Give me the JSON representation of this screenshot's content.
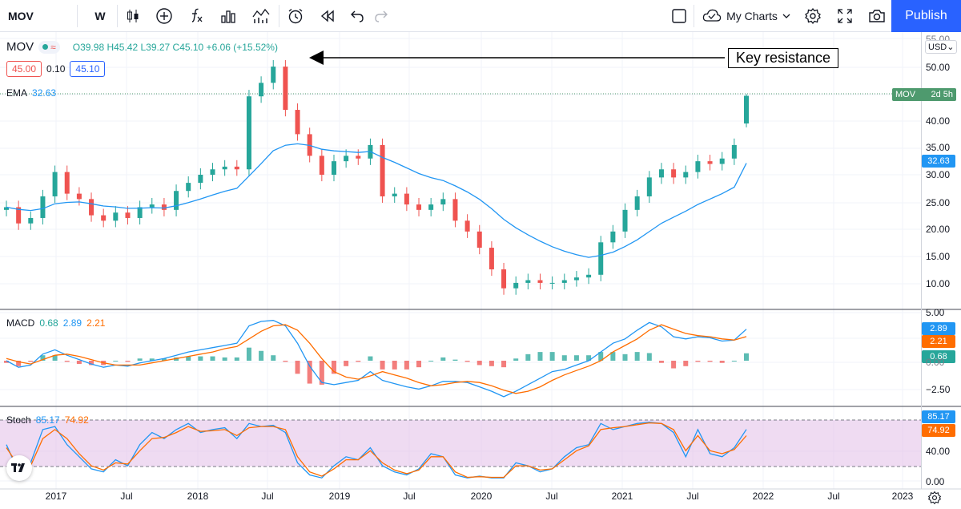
{
  "toolbar": {
    "symbol": "MOV",
    "interval": "W",
    "my_charts_label": "My Charts",
    "publish_label": "Publish"
  },
  "legend": {
    "symbol": "MOV",
    "ohlc": "O39.98  H45.42  L39.27  C45.10  +6.06 (+15.52%)",
    "bid": "45.00",
    "spread": "0.10",
    "ask": "45.10",
    "ema_label": "EMA",
    "ema_value": "32.63",
    "macd_label": "MACD",
    "macd_hist": "0.68",
    "macd_line": "2.89",
    "macd_signal": "2.21",
    "stoch_label": "Stoch",
    "stoch_k": "85.17",
    "stoch_d": "74.92"
  },
  "colors": {
    "up": "#26a69a",
    "down": "#ef5350",
    "ema": "#2196f3",
    "macd": "#2196f3",
    "signal": "#ff6d00",
    "stoch_k": "#2196f3",
    "stoch_d": "#ff6d00",
    "stoch_band": "#e1bee7",
    "publish": "#2962ff"
  },
  "annotation": {
    "text": "Key resistance"
  },
  "price_axis": {
    "currency": "USD",
    "ticks": [
      "55.00",
      "50.00",
      "45.00",
      "40.00",
      "35.00",
      "30.00",
      "25.00",
      "20.00",
      "15.00",
      "10.00"
    ],
    "last_label": "MOV",
    "last_countdown": "2d 5h",
    "ema_tag": "32.63"
  },
  "macd_axis": {
    "ticks": [
      "5.00",
      "2.50",
      "0.00",
      "−2.50"
    ],
    "tags": [
      "2.89",
      "2.21",
      "0.68"
    ]
  },
  "stoch_axis": {
    "ticks": [
      "40.00",
      "0.00"
    ],
    "tags": [
      "85.17",
      "74.92"
    ]
  },
  "time_axis": {
    "labels": [
      "2017",
      "Jul",
      "2018",
      "Jul",
      "2019",
      "Jul",
      "2020",
      "Jul",
      "2021",
      "Jul",
      "2022",
      "Jul",
      "2023"
    ]
  },
  "chart_data": [
    {
      "type": "candlestick",
      "title": "MOV",
      "interval": "W",
      "x": [
        "2016-10",
        "2016-11",
        "2016-12",
        "2017-01",
        "2017-02",
        "2017-03",
        "2017-04",
        "2017-05",
        "2017-06",
        "2017-07",
        "2017-08",
        "2017-09",
        "2017-10",
        "2017-11",
        "2017-12",
        "2018-01",
        "2018-02",
        "2018-03",
        "2018-04",
        "2018-05",
        "2018-06",
        "2018-07",
        "2018-08",
        "2018-09",
        "2018-10",
        "2018-11",
        "2018-12",
        "2019-01",
        "2019-02",
        "2019-03",
        "2019-04",
        "2019-05",
        "2019-06",
        "2019-07",
        "2019-08",
        "2019-09",
        "2019-10",
        "2019-11",
        "2019-12",
        "2020-01",
        "2020-02",
        "2020-03",
        "2020-04",
        "2020-05",
        "2020-06",
        "2020-07",
        "2020-08",
        "2020-09",
        "2020-10",
        "2020-11",
        "2020-12",
        "2021-01",
        "2021-02",
        "2021-03",
        "2021-04",
        "2021-05",
        "2021-06",
        "2021-07",
        "2021-08",
        "2021-09",
        "2021-10",
        "2021-11"
      ],
      "close": [
        24.5,
        21.5,
        22.5,
        26.5,
        31.0,
        27.0,
        26.0,
        23.0,
        22.0,
        23.5,
        22.5,
        24.5,
        25.0,
        24.0,
        27.5,
        29.0,
        30.5,
        31.5,
        32.0,
        31.5,
        45.0,
        47.5,
        50.5,
        42.5,
        38.0,
        34.0,
        30.5,
        33.0,
        34.0,
        33.5,
        36.0,
        26.5,
        27.0,
        25.0,
        24.0,
        25.0,
        26.0,
        22.0,
        20.0,
        17.0,
        13.0,
        9.5,
        10.5,
        11.0,
        10.5,
        10.5,
        11.0,
        11.5,
        12.0,
        18.0,
        20.0,
        24.0,
        26.5,
        30.0,
        31.5,
        30.0,
        31.0,
        33.0,
        32.5,
        33.5,
        36.0,
        45.1
      ],
      "ylim": [
        5,
        56
      ],
      "ema_value": 32.63,
      "last": {
        "open": 39.98,
        "high": 45.42,
        "low": 39.27,
        "close": 45.1,
        "change": 6.06,
        "change_pct": 15.52
      },
      "annotation": "Key resistance"
    },
    {
      "type": "line",
      "title": "MACD",
      "series": [
        {
          "name": "MACD",
          "values": [
            0.0,
            -0.6,
            -0.4,
            0.6,
            1.0,
            0.5,
            0.1,
            -0.3,
            -0.6,
            -0.4,
            -0.5,
            -0.2,
            0.0,
            0.2,
            0.5,
            0.8,
            1.0,
            1.2,
            1.4,
            1.6,
            3.2,
            3.6,
            3.7,
            3.2,
            1.6,
            -0.5,
            -2.0,
            -2.2,
            -2.0,
            -1.8,
            -1.0,
            -1.8,
            -2.1,
            -2.4,
            -2.6,
            -2.3,
            -1.9,
            -1.9,
            -2.0,
            -2.4,
            -2.8,
            -3.3,
            -2.8,
            -2.2,
            -1.6,
            -1.0,
            -0.8,
            -0.4,
            0.0,
            0.8,
            1.6,
            2.0,
            2.8,
            3.5,
            3.1,
            2.2,
            2.0,
            2.2,
            2.1,
            1.8,
            1.9,
            2.89
          ]
        },
        {
          "name": "Signal",
          "values": [
            0.2,
            -0.1,
            -0.3,
            0.1,
            0.5,
            0.6,
            0.4,
            0.1,
            -0.2,
            -0.4,
            -0.4,
            -0.4,
            -0.2,
            0.0,
            0.2,
            0.4,
            0.6,
            0.8,
            1.1,
            1.3,
            2.0,
            2.7,
            3.2,
            3.3,
            2.8,
            1.6,
            0.2,
            -1.0,
            -1.5,
            -1.7,
            -1.4,
            -1.0,
            -1.3,
            -1.6,
            -2.0,
            -2.3,
            -2.2,
            -2.0,
            -1.9,
            -2.0,
            -2.3,
            -2.7,
            -3.0,
            -2.8,
            -2.4,
            -1.8,
            -1.3,
            -0.9,
            -0.5,
            0.0,
            0.8,
            1.4,
            2.0,
            2.8,
            3.3,
            2.9,
            2.5,
            2.3,
            2.2,
            2.0,
            1.9,
            2.21
          ]
        },
        {
          "name": "Histogram",
          "values": [
            -0.2,
            -0.5,
            -0.1,
            0.5,
            0.5,
            -0.1,
            -0.3,
            -0.4,
            -0.4,
            0.0,
            -0.1,
            0.2,
            0.2,
            0.2,
            0.3,
            0.4,
            0.4,
            0.4,
            0.3,
            0.3,
            1.2,
            0.9,
            0.5,
            -0.1,
            -1.2,
            -2.1,
            -2.2,
            -1.2,
            -0.5,
            -0.1,
            0.4,
            -0.8,
            -0.8,
            -0.8,
            -0.6,
            0.0,
            0.3,
            0.1,
            -0.1,
            -0.4,
            -0.5,
            -0.6,
            0.2,
            0.6,
            0.8,
            0.8,
            0.5,
            0.5,
            0.5,
            0.8,
            0.8,
            0.6,
            0.8,
            0.7,
            -0.2,
            -0.7,
            -0.5,
            -0.1,
            -0.1,
            -0.2,
            0.0,
            0.68
          ]
        }
      ],
      "ylim": [
        -3.8,
        5.5
      ]
    },
    {
      "type": "line",
      "title": "Stoch",
      "series": [
        {
          "name": "%K",
          "values": [
            60,
            15,
            30,
            85,
            90,
            60,
            40,
            20,
            15,
            35,
            25,
            60,
            80,
            70,
            85,
            95,
            80,
            85,
            88,
            70,
            95,
            90,
            92,
            80,
            30,
            10,
            5,
            25,
            40,
            35,
            55,
            25,
            15,
            10,
            20,
            45,
            40,
            10,
            5,
            8,
            5,
            5,
            30,
            25,
            15,
            20,
            40,
            55,
            60,
            95,
            85,
            90,
            95,
            97,
            95,
            80,
            40,
            85,
            45,
            40,
            55,
            85.17
          ]
        },
        {
          "name": "%D",
          "values": [
            55,
            25,
            25,
            70,
            85,
            70,
            45,
            25,
            18,
            30,
            28,
            50,
            70,
            72,
            80,
            90,
            82,
            83,
            85,
            75,
            88,
            90,
            90,
            85,
            40,
            15,
            8,
            20,
            35,
            35,
            50,
            30,
            18,
            12,
            18,
            40,
            40,
            15,
            6,
            7,
            6,
            6,
            25,
            25,
            18,
            20,
            35,
            50,
            58,
            85,
            88,
            90,
            93,
            96,
            95,
            85,
            50,
            75,
            50,
            45,
            52,
            74.92
          ]
        }
      ],
      "ylim": [
        -5,
        110
      ],
      "bands": [
        20,
        80
      ]
    }
  ]
}
